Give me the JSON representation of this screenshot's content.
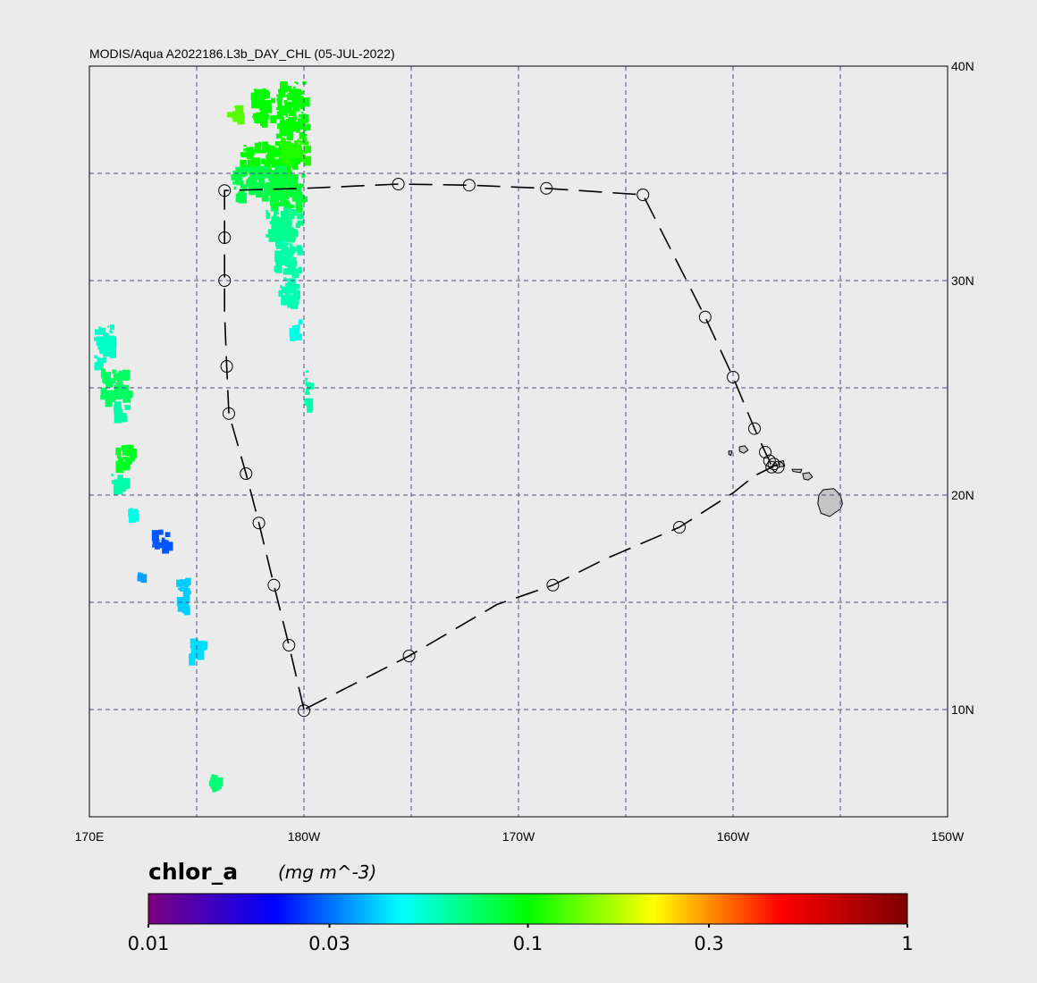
{
  "title": "MODIS/Aqua A2022186.L3b_DAY_CHL (05-JUL-2022)",
  "map": {
    "lon_range": [
      170,
      210
    ],
    "lat_range": [
      5,
      40
    ],
    "graticule": {
      "lons": [
        175,
        180,
        185,
        190,
        195,
        200,
        205
      ],
      "lats": [
        10,
        15,
        20,
        25,
        30,
        35
      ]
    },
    "lon_ticks": [
      {
        "lon": 170,
        "label": "170E"
      },
      {
        "lon": 180,
        "label": "180W"
      },
      {
        "lon": 190,
        "label": "170W"
      },
      {
        "lon": 200,
        "label": "160W"
      },
      {
        "lon": 210,
        "label": "150W"
      }
    ],
    "lat_ticks": [
      {
        "lat": 40,
        "label": "40N"
      },
      {
        "lat": 30,
        "label": "30N"
      },
      {
        "lat": 20,
        "label": "20N"
      },
      {
        "lat": 10,
        "label": "10N"
      }
    ],
    "colors": {
      "background": "#ebebeb",
      "grid": "#4b4b8c",
      "track": "#000000",
      "land": "#c4c4c4"
    },
    "track": [
      {
        "lon": 180.0,
        "lat": 10.0
      },
      {
        "lon": 179.3,
        "lat": 13.0
      },
      {
        "lon": 178.6,
        "lat": 15.8
      },
      {
        "lon": 177.9,
        "lat": 18.7
      },
      {
        "lon": 177.3,
        "lat": 21.0
      },
      {
        "lon": 176.5,
        "lat": 23.8
      },
      {
        "lon": 176.4,
        "lat": 26.0
      },
      {
        "lon": 176.3,
        "lat": 28.5
      },
      {
        "lon": 176.3,
        "lat": 30.0
      },
      {
        "lon": 176.3,
        "lat": 32.0
      },
      {
        "lon": 176.3,
        "lat": 34.2
      },
      {
        "lon": 180.0,
        "lat": 34.3
      },
      {
        "lon": 184.4,
        "lat": 34.5
      },
      {
        "lon": 187.7,
        "lat": 34.45
      },
      {
        "lon": 191.3,
        "lat": 34.3
      },
      {
        "lon": 195.8,
        "lat": 34.0
      },
      {
        "lon": 198.7,
        "lat": 28.3
      },
      {
        "lon": 200.0,
        "lat": 25.5
      },
      {
        "lon": 201.0,
        "lat": 23.1
      },
      {
        "lon": 201.5,
        "lat": 22.0
      },
      {
        "lon": 201.7,
        "lat": 21.6
      },
      {
        "lon": 201.8,
        "lat": 21.3
      },
      {
        "lon": 202.1,
        "lat": 21.3
      },
      {
        "lon": 202.0,
        "lat": 21.4
      },
      {
        "lon": 201.0,
        "lat": 20.9
      },
      {
        "lon": 200.0,
        "lat": 20.1
      },
      {
        "lon": 197.5,
        "lat": 18.5
      },
      {
        "lon": 194.0,
        "lat": 17.0
      },
      {
        "lon": 191.6,
        "lat": 15.8
      },
      {
        "lon": 189.0,
        "lat": 14.9
      },
      {
        "lon": 184.9,
        "lat": 12.5
      },
      {
        "lon": 180.0,
        "lat": 10.0
      }
    ],
    "stations": [
      {
        "lon": 180.0,
        "lat": 9.95
      },
      {
        "lon": 179.3,
        "lat": 13.0
      },
      {
        "lon": 178.6,
        "lat": 15.8
      },
      {
        "lon": 177.9,
        "lat": 18.7
      },
      {
        "lon": 177.3,
        "lat": 21.0
      },
      {
        "lon": 176.5,
        "lat": 23.8
      },
      {
        "lon": 176.4,
        "lat": 26.0
      },
      {
        "lon": 176.3,
        "lat": 30.0
      },
      {
        "lon": 176.3,
        "lat": 32.0
      },
      {
        "lon": 176.3,
        "lat": 34.2
      },
      {
        "lon": 184.4,
        "lat": 34.5
      },
      {
        "lon": 187.7,
        "lat": 34.45
      },
      {
        "lon": 191.3,
        "lat": 34.3
      },
      {
        "lon": 195.8,
        "lat": 34.0
      },
      {
        "lon": 198.7,
        "lat": 28.3
      },
      {
        "lon": 200.0,
        "lat": 25.5
      },
      {
        "lon": 201.0,
        "lat": 23.1
      },
      {
        "lon": 201.5,
        "lat": 22.0
      },
      {
        "lon": 201.7,
        "lat": 21.6
      },
      {
        "lon": 201.8,
        "lat": 21.3
      },
      {
        "lon": 202.1,
        "lat": 21.3
      },
      {
        "lon": 201.9,
        "lat": 21.45
      },
      {
        "lon": 197.5,
        "lat": 18.5
      },
      {
        "lon": 191.6,
        "lat": 15.8
      },
      {
        "lon": 184.9,
        "lat": 12.5
      }
    ],
    "islands": [
      [
        [
          204.2,
          20.25
        ],
        [
          204.7,
          20.3
        ],
        [
          205.0,
          20.0
        ],
        [
          205.1,
          19.6
        ],
        [
          205.0,
          19.35
        ],
        [
          204.5,
          19.0
        ],
        [
          204.1,
          19.15
        ],
        [
          203.95,
          19.6
        ],
        [
          204.0,
          20.0
        ]
      ],
      [
        [
          203.25,
          21.0
        ],
        [
          203.55,
          21.05
        ],
        [
          203.7,
          20.85
        ],
        [
          203.5,
          20.7
        ],
        [
          203.3,
          20.75
        ]
      ],
      [
        [
          202.75,
          21.2
        ],
        [
          203.2,
          21.2
        ],
        [
          203.15,
          21.05
        ],
        [
          202.8,
          21.1
        ]
      ],
      [
        [
          202.1,
          21.55
        ],
        [
          202.35,
          21.6
        ],
        [
          202.4,
          21.35
        ],
        [
          202.15,
          21.3
        ]
      ],
      [
        [
          200.3,
          22.25
        ],
        [
          200.55,
          22.3
        ],
        [
          200.7,
          22.1
        ],
        [
          200.5,
          21.95
        ],
        [
          200.3,
          22.05
        ]
      ],
      [
        [
          199.8,
          22.05
        ],
        [
          199.95,
          22.05
        ],
        [
          199.9,
          21.85
        ],
        [
          199.8,
          21.9
        ]
      ]
    ],
    "chlorophyll_patches": [
      {
        "lon": 177.5,
        "lat": 37.5,
        "w": 1.0,
        "h": 1.5,
        "value": 0.1
      },
      {
        "lon": 178.7,
        "lat": 36.8,
        "w": 1.3,
        "h": 2.5,
        "value": 0.1
      },
      {
        "lon": 177.0,
        "lat": 35.0,
        "w": 2.5,
        "h": 1.5,
        "value": 0.1
      },
      {
        "lon": 178.9,
        "lat": 35.5,
        "w": 1.1,
        "h": 1.2,
        "value": 0.11
      },
      {
        "lon": 176.6,
        "lat": 34.0,
        "w": 2.3,
        "h": 1.4,
        "value": 0.08
      },
      {
        "lon": 178.4,
        "lat": 33.5,
        "w": 1.5,
        "h": 1.5,
        "value": 0.085
      },
      {
        "lon": 178.2,
        "lat": 32.0,
        "w": 1.5,
        "h": 1.4,
        "value": 0.065
      },
      {
        "lon": 178.6,
        "lat": 30.5,
        "w": 1.2,
        "h": 1.4,
        "value": 0.06
      },
      {
        "lon": 178.8,
        "lat": 29.0,
        "w": 0.8,
        "h": 1.2,
        "value": 0.058
      },
      {
        "lon": 179.3,
        "lat": 27.5,
        "w": 0.5,
        "h": 0.8,
        "value": 0.05
      },
      {
        "lon": 176.3,
        "lat": 37.8,
        "w": 0.6,
        "h": 0.4,
        "value": 0.13
      },
      {
        "lon": 170.2,
        "lat": 26.0,
        "w": 0.8,
        "h": 2.0,
        "value": 0.055
      },
      {
        "lon": 170.5,
        "lat": 24.5,
        "w": 1.2,
        "h": 1.5,
        "value": 0.075
      },
      {
        "lon": 171.1,
        "lat": 23.6,
        "w": 0.6,
        "h": 0.8,
        "value": 0.06
      },
      {
        "lon": 171.2,
        "lat": 21.5,
        "w": 0.7,
        "h": 0.9,
        "value": 0.09
      },
      {
        "lon": 171.0,
        "lat": 20.4,
        "w": 0.7,
        "h": 0.6,
        "value": 0.06
      },
      {
        "lon": 172.9,
        "lat": 17.6,
        "w": 0.7,
        "h": 0.8,
        "value": 0.028
      },
      {
        "lon": 174.0,
        "lat": 14.7,
        "w": 0.5,
        "h": 1.5,
        "value": 0.04
      },
      {
        "lon": 174.6,
        "lat": 12.4,
        "w": 0.6,
        "h": 1.0,
        "value": 0.042
      },
      {
        "lon": 172.2,
        "lat": 16.2,
        "w": 0.2,
        "h": 0.3,
        "value": 0.035
      },
      {
        "lon": 171.8,
        "lat": 19.0,
        "w": 0.3,
        "h": 0.5,
        "value": 0.05
      },
      {
        "lon": 175.5,
        "lat": 6.4,
        "w": 0.5,
        "h": 0.6,
        "value": 0.07
      },
      {
        "lon": 180.0,
        "lat": 24.0,
        "w": 0.15,
        "h": 2.0,
        "value": 0.06
      }
    ]
  },
  "colorbar": {
    "variable": "chlor_a",
    "units": "(mg m^-3)",
    "range": [
      0.01,
      1
    ],
    "scale": "log",
    "ticks": [
      {
        "value": 0.01,
        "label": "0.01"
      },
      {
        "value": 0.03,
        "label": "0.03"
      },
      {
        "value": 0.1,
        "label": "0.1"
      },
      {
        "value": 0.3,
        "label": "0.3"
      },
      {
        "value": 1,
        "label": "1"
      }
    ],
    "stops": [
      "#7d007d",
      "#0000ff",
      "#00ffff",
      "#00ff00",
      "#ffff00",
      "#ff0000",
      "#7d0000"
    ]
  }
}
